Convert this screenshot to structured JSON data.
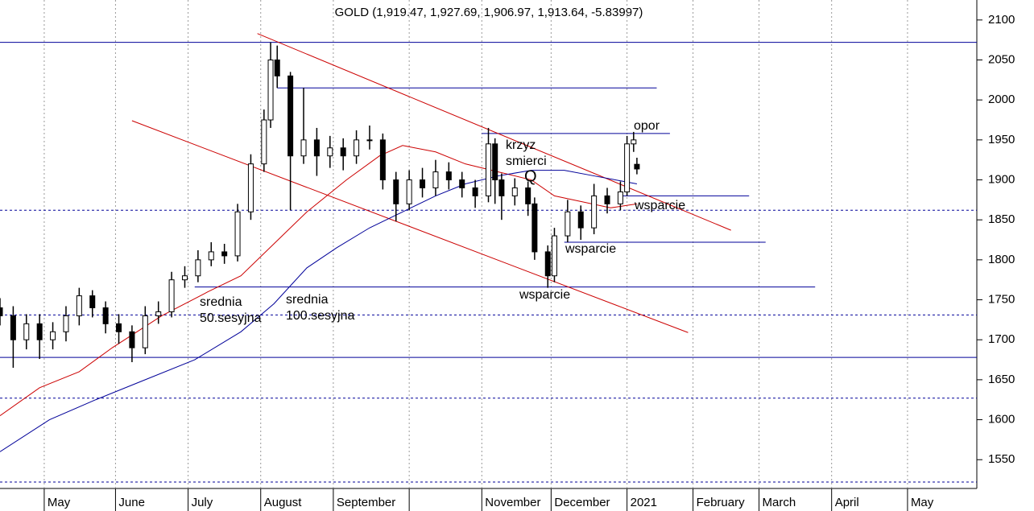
{
  "chart_data": {
    "type": "candlestick",
    "title": "GOLD (1,919.47, 1,927.69, 1,906.97, 1,913.64, -5.83997)",
    "xlim": [
      0,
      296
    ],
    "ylim": [
      1514,
      2125
    ],
    "xticks": [
      {
        "value": 13.4,
        "label": "May"
      },
      {
        "value": 35,
        "label": "June"
      },
      {
        "value": 57,
        "label": "July"
      },
      {
        "value": 79,
        "label": "August"
      },
      {
        "value": 101,
        "label": "September"
      },
      {
        "value": 124,
        "label": null
      },
      {
        "value": 146,
        "label": "November"
      },
      {
        "value": 167,
        "label": "December"
      },
      {
        "value": 190,
        "label": "2021"
      },
      {
        "value": 210,
        "label": "February"
      },
      {
        "value": 230,
        "label": "March"
      },
      {
        "value": 252,
        "label": "April"
      },
      {
        "value": 275,
        "label": "May"
      }
    ],
    "yticks": [
      1550,
      1600,
      1650,
      1700,
      1750,
      1800,
      1850,
      1900,
      1950,
      2000,
      2050,
      2100
    ],
    "grid": true,
    "x": [
      0,
      4,
      8,
      12,
      16,
      20,
      24,
      28,
      32,
      36,
      40,
      44,
      48,
      52,
      56,
      60,
      64,
      68,
      72,
      76,
      80,
      82,
      84,
      88,
      92,
      96,
      100,
      104,
      108,
      112,
      116,
      120,
      124,
      128,
      132,
      136,
      140,
      144,
      148,
      150,
      152,
      156,
      160,
      162,
      166,
      168,
      172,
      176,
      180,
      184,
      188,
      190,
      192,
      193
    ],
    "open": [
      1740,
      1730,
      1700,
      1720,
      1700,
      1710,
      1730,
      1755,
      1740,
      1720,
      1710,
      1690,
      1730,
      1735,
      1775,
      1780,
      1800,
      1810,
      1805,
      1860,
      1920,
      1975,
      2050,
      2030,
      1930,
      1950,
      1930,
      1940,
      1930,
      1950,
      1950,
      1900,
      1870,
      1900,
      1890,
      1910,
      1900,
      1890,
      1880,
      1945,
      1900,
      1880,
      1890,
      1870,
      1810,
      1780,
      1830,
      1860,
      1840,
      1880,
      1870,
      1885,
      1945,
      1919.47
    ],
    "high": [
      1752,
      1742,
      1732,
      1732,
      1722,
      1742,
      1765,
      1762,
      1748,
      1732,
      1718,
      1742,
      1748,
      1785,
      1792,
      1812,
      1822,
      1820,
      1870,
      1932,
      1988,
      2072,
      2068,
      2035,
      2015,
      1965,
      1955,
      1952,
      1962,
      1968,
      1958,
      1910,
      1912,
      1915,
      1925,
      1922,
      1910,
      1900,
      1965,
      1952,
      1908,
      1902,
      1898,
      1878,
      1818,
      1840,
      1875,
      1868,
      1895,
      1890,
      1898,
      1955,
      1960,
      1927.69
    ],
    "low": [
      1718,
      1665,
      1688,
      1676,
      1688,
      1698,
      1718,
      1728,
      1708,
      1695,
      1672,
      1682,
      1720,
      1728,
      1765,
      1772,
      1792,
      1795,
      1798,
      1850,
      1910,
      1965,
      2015,
      1862,
      1920,
      1905,
      1915,
      1912,
      1920,
      1938,
      1888,
      1848,
      1862,
      1878,
      1880,
      1888,
      1878,
      1865,
      1872,
      1870,
      1850,
      1868,
      1855,
      1800,
      1765,
      1772,
      1822,
      1825,
      1832,
      1858,
      1862,
      1880,
      1935,
      1906.97
    ],
    "close": [
      1730,
      1700,
      1720,
      1700,
      1710,
      1730,
      1755,
      1740,
      1720,
      1710,
      1690,
      1730,
      1735,
      1775,
      1780,
      1800,
      1810,
      1805,
      1860,
      1920,
      1975,
      2050,
      2030,
      1930,
      1950,
      1930,
      1940,
      1930,
      1950,
      1950,
      1900,
      1870,
      1900,
      1890,
      1910,
      1900,
      1890,
      1880,
      1945,
      1900,
      1880,
      1890,
      1870,
      1810,
      1780,
      1830,
      1860,
      1840,
      1880,
      1870,
      1885,
      1945,
      1950,
      1913.64
    ],
    "series": [
      {
        "color": "#cc0000",
        "x": [
          0,
          12,
          24,
          34,
          49,
          63,
          73,
          83,
          93,
          105,
          115,
          122,
          132,
          141,
          151,
          161,
          168,
          176,
          185,
          193
        ],
        "values": [
          1605,
          1640,
          1660,
          1690,
          1730,
          1760,
          1780,
          1820,
          1860,
          1900,
          1930,
          1943,
          1935,
          1920,
          1910,
          1900,
          1880,
          1873,
          1865,
          1870
        ]
      },
      {
        "color": "#000099",
        "x": [
          0,
          15,
          29,
          44,
          59,
          73,
          83,
          93,
          102,
          112,
          122,
          132,
          141,
          151,
          161,
          171,
          180,
          193
        ],
        "values": [
          1560,
          1600,
          1625,
          1650,
          1675,
          1710,
          1745,
          1790,
          1815,
          1840,
          1860,
          1880,
          1895,
          1905,
          1912,
          1912,
          1905,
          1895
        ]
      }
    ],
    "levels": [
      {
        "value": 2072,
        "from": 0,
        "to": 296,
        "dashed": false
      },
      {
        "value": 2015,
        "from": 84,
        "to": 199,
        "dashed": false
      },
      {
        "value": 1958,
        "from": 146,
        "to": 203,
        "dashed": false
      },
      {
        "value": 1880,
        "from": 188,
        "to": 227,
        "dashed": false
      },
      {
        "value": 1862,
        "from": 0,
        "to": 296,
        "dashed": true
      },
      {
        "value": 1822,
        "from": 171,
        "to": 232,
        "dashed": false
      },
      {
        "value": 1766,
        "from": 59,
        "to": 247,
        "dashed": false
      },
      {
        "value": 1731,
        "from": 0,
        "to": 296,
        "dashed": true
      },
      {
        "value": 1678,
        "from": 0,
        "to": 296,
        "dashed": false
      },
      {
        "value": 1627,
        "from": 0,
        "to": 296,
        "dashed": true
      },
      {
        "value": 1522,
        "from": 0,
        "to": 296,
        "dashed": true
      }
    ],
    "level_color": "#000099",
    "trend_color": "#cc0000",
    "trend_lines": [
      {
        "x": [
          78,
          221.5
        ],
        "y": [
          2083,
          1837
        ]
      },
      {
        "x": [
          40,
          208.5
        ],
        "y": [
          1974,
          1709
        ]
      }
    ],
    "annotations": [
      {
        "text": "opor",
        "color": "#000099"
      },
      {
        "text": "krzyz",
        "color": "#000099"
      },
      {
        "text": "smierci",
        "color": "#000099"
      },
      {
        "text": "Q",
        "color": "#000099"
      },
      {
        "text": "wsparcie",
        "color": "#000099"
      },
      {
        "text": "wsparcie",
        "color": "#000099"
      },
      {
        "text": "wsparcie",
        "color": "#000099"
      },
      {
        "text": "srednia",
        "color": "#cc0000"
      },
      {
        "text": "50.sesyjna",
        "color": "#cc0000"
      },
      {
        "text": "srednia",
        "color": "#000099"
      },
      {
        "text": "100.sesyjna",
        "color": "#000099"
      }
    ]
  }
}
